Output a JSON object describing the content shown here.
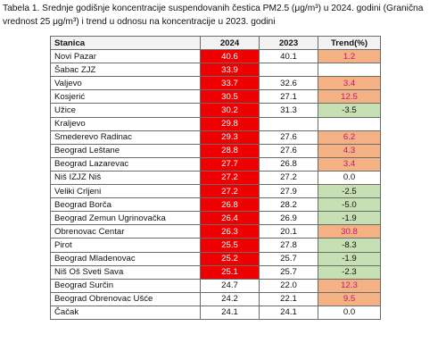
{
  "caption": "Tabela 1. Srednje godišnje koncentracije suspendovanih čestica PM2.5 (μg/m³) u 2024. godini (Granična vrednost 25 μg/m³) i trend u odnosu na koncentracije u 2023. godini",
  "table": {
    "headers": [
      "Stanica",
      "2024",
      "2023",
      "Trend(%)"
    ],
    "limit_value": 25,
    "colors": {
      "exceed": "#ee0000",
      "increase": "#f4b183",
      "decrease": "#c6e0b4",
      "increase_text": "#c0187a"
    },
    "rows": [
      {
        "station": "Novi Pazar",
        "v2024": "40.6",
        "v2023": "40.1",
        "trend": "1.2",
        "trend_class": "up"
      },
      {
        "station": "Šabac ZJZ",
        "v2024": "33.9",
        "v2023": "",
        "trend": "",
        "trend_class": "neutral"
      },
      {
        "station": "Valjevo",
        "v2024": "33.7",
        "v2023": "32.6",
        "trend": "3.4",
        "trend_class": "up"
      },
      {
        "station": "Kosjerić",
        "v2024": "30.5",
        "v2023": "27.1",
        "trend": "12.5",
        "trend_class": "up"
      },
      {
        "station": "Užice",
        "v2024": "30.2",
        "v2023": "31.3",
        "trend": "-3.5",
        "trend_class": "down"
      },
      {
        "station": "Kraljevo",
        "v2024": "29.8",
        "v2023": "",
        "trend": "",
        "trend_class": "neutral"
      },
      {
        "station": "Smederevo Radinac",
        "v2024": "29.3",
        "v2023": "27.6",
        "trend": "6.2",
        "trend_class": "up"
      },
      {
        "station": "Beograd Leštane",
        "v2024": "28.8",
        "v2023": "27.6",
        "trend": "4.3",
        "trend_class": "up"
      },
      {
        "station": "Beograd Lazarevac",
        "v2024": "27.7",
        "v2023": "26.8",
        "trend": "3.4",
        "trend_class": "up"
      },
      {
        "station": "Niš IZJZ Niš",
        "v2024": "27.2",
        "v2023": "27.2",
        "trend": "0.0",
        "trend_class": "neutral"
      },
      {
        "station": "Veliki Crljeni",
        "v2024": "27.2",
        "v2023": "27.9",
        "trend": "-2.5",
        "trend_class": "down"
      },
      {
        "station": "Beograd Borča",
        "v2024": "26.8",
        "v2023": "28.2",
        "trend": "-5.0",
        "trend_class": "down"
      },
      {
        "station": "Beograd Zemun Ugrinovačka",
        "v2024": "26.4",
        "v2023": "26.9",
        "trend": "-1.9",
        "trend_class": "down"
      },
      {
        "station": "Obrenovac Centar",
        "v2024": "26.3",
        "v2023": "20.1",
        "trend": "30.8",
        "trend_class": "up"
      },
      {
        "station": "Pirot",
        "v2024": "25.5",
        "v2023": "27.8",
        "trend": "-8.3",
        "trend_class": "down"
      },
      {
        "station": "Beograd Mladenovac",
        "v2024": "25.2",
        "v2023": "25.7",
        "trend": "-1.9",
        "trend_class": "down"
      },
      {
        "station": "Niš Oš Sveti Sava",
        "v2024": "25.1",
        "v2023": "25.7",
        "trend": "-2.3",
        "trend_class": "down"
      },
      {
        "station": "Beograd Surčin",
        "v2024": "24.7",
        "v2023": "22.0",
        "trend": "12.3",
        "trend_class": "up"
      },
      {
        "station": "Beograd Obrenovac Ušće",
        "v2024": "24.2",
        "v2023": "22.1",
        "trend": "9.5",
        "trend_class": "up"
      },
      {
        "station": "Čačak",
        "v2024": "24.1",
        "v2023": "24.1",
        "trend": "0.0",
        "trend_class": "neutral"
      }
    ]
  }
}
